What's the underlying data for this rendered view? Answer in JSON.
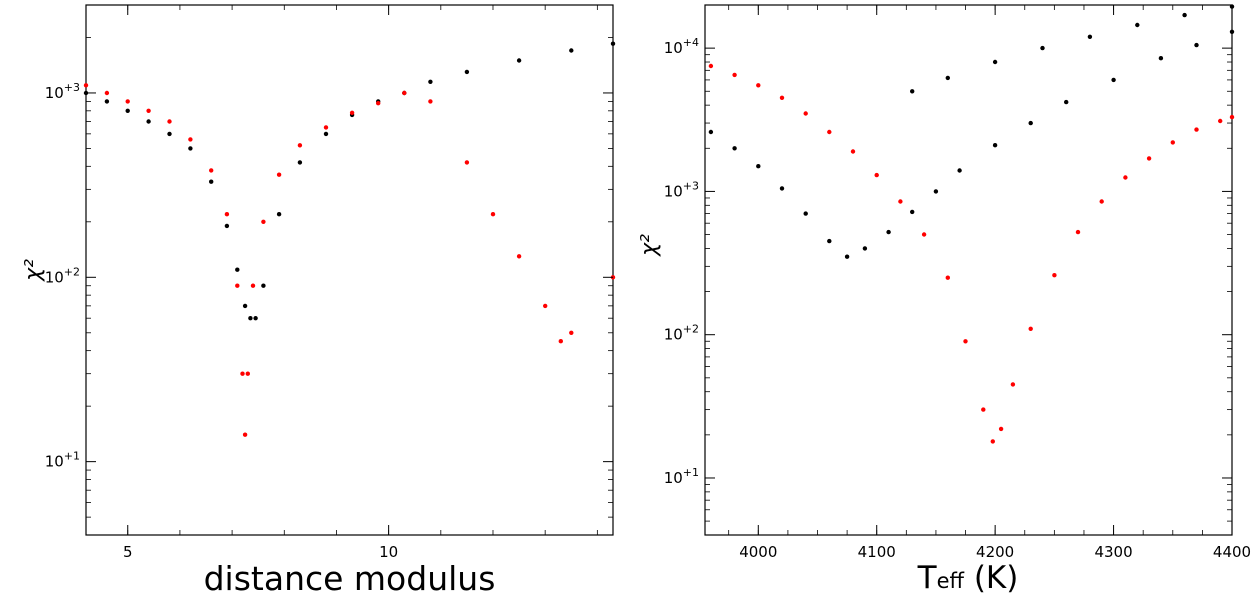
{
  "chart_data": [
    {
      "type": "scatter",
      "title": "",
      "xlabel": "distance modulus",
      "ylabel": "χ²",
      "xlim": [
        4.2,
        14.3
      ],
      "ylim": [
        4,
        3000
      ],
      "y_scale": "log",
      "grid": false,
      "legend": "none",
      "x_ticks": [
        {
          "value": 5,
          "label": "5"
        },
        {
          "value": 10,
          "label": "10"
        }
      ],
      "y_ticks": [
        {
          "value": 10,
          "label": "10+1"
        },
        {
          "value": 100,
          "label": "10+2"
        },
        {
          "value": 1000,
          "label": "10+3"
        }
      ],
      "series": [
        {
          "color": "#000000",
          "description": "black points",
          "x": [
            4.2,
            4.6,
            5.0,
            5.4,
            5.8,
            6.2,
            6.6,
            6.9,
            7.1,
            7.25,
            7.35,
            7.45,
            7.6,
            7.9,
            8.3,
            8.8,
            9.3,
            9.8,
            10.3,
            10.8,
            11.5,
            12.5,
            13.5,
            14.3
          ],
          "y": [
            1000,
            900,
            800,
            700,
            600,
            500,
            330,
            190,
            110,
            70,
            60,
            60,
            90,
            220,
            420,
            600,
            760,
            900,
            1000,
            1150,
            1300,
            1500,
            1700,
            1850
          ]
        },
        {
          "color": "#ff0000",
          "description": "red points",
          "x": [
            4.2,
            4.6,
            5.0,
            5.4,
            5.8,
            6.2,
            6.6,
            6.9,
            7.1,
            7.2,
            7.25,
            7.3,
            7.4,
            7.6,
            7.9,
            8.3,
            8.8,
            9.3,
            9.8,
            10.3,
            10.8,
            11.5,
            12.0,
            12.5,
            13.0,
            13.3,
            13.5,
            14.3
          ],
          "y": [
            1100,
            1000,
            900,
            800,
            700,
            560,
            380,
            220,
            90,
            30,
            14,
            30,
            90,
            200,
            360,
            520,
            650,
            780,
            880,
            1000,
            900,
            420,
            220,
            130,
            70,
            45,
            50,
            100
          ]
        }
      ]
    },
    {
      "type": "scatter",
      "title": "",
      "xlabel": "Teff (K)",
      "xlabel_main": "T",
      "xlabel_sub": "eff",
      "xlabel_unit": " (K)",
      "ylabel": "χ²",
      "xlim": [
        3955,
        4400
      ],
      "ylim": [
        4,
        20000
      ],
      "y_scale": "log",
      "grid": false,
      "legend": "none",
      "x_ticks": [
        {
          "value": 4000,
          "label": "4000"
        },
        {
          "value": 4100,
          "label": "4100"
        },
        {
          "value": 4200,
          "label": "4200"
        },
        {
          "value": 4300,
          "label": "4300"
        },
        {
          "value": 4400,
          "label": "4400"
        }
      ],
      "y_ticks": [
        {
          "value": 10,
          "label": "10+1"
        },
        {
          "value": 100,
          "label": "10+2"
        },
        {
          "value": 1000,
          "label": "10+3"
        },
        {
          "value": 10000,
          "label": "10+4"
        }
      ],
      "series": [
        {
          "color": "#000000",
          "description": "black points (main curve)",
          "x": [
            3960,
            3980,
            4000,
            4020,
            4040,
            4060,
            4075,
            4090,
            4110,
            4130,
            4150,
            4170,
            4200,
            4230,
            4260,
            4300,
            4340,
            4370,
            4400
          ],
          "y": [
            2600,
            2000,
            1500,
            1050,
            700,
            450,
            350,
            400,
            520,
            720,
            1000,
            1400,
            2100,
            3000,
            4200,
            6000,
            8500,
            10500,
            13000
          ]
        },
        {
          "color": "#000000",
          "description": "black points (upper branch)",
          "x": [
            4130,
            4160,
            4200,
            4240,
            4280,
            4320,
            4360,
            4400
          ],
          "y": [
            5000,
            6200,
            8000,
            10000,
            12000,
            14500,
            17000,
            19500
          ]
        },
        {
          "color": "#ff0000",
          "description": "red points",
          "x": [
            3960,
            3980,
            4000,
            4020,
            4040,
            4060,
            4080,
            4100,
            4120,
            4140,
            4160,
            4175,
            4190,
            4198,
            4205,
            4215,
            4230,
            4250,
            4270,
            4290,
            4310,
            4330,
            4350,
            4370,
            4390,
            4400
          ],
          "y": [
            7500,
            6500,
            5500,
            4500,
            3500,
            2600,
            1900,
            1300,
            850,
            500,
            250,
            90,
            30,
            18,
            22,
            45,
            110,
            260,
            520,
            850,
            1250,
            1700,
            2200,
            2700,
            3100,
            3300
          ]
        }
      ]
    }
  ]
}
